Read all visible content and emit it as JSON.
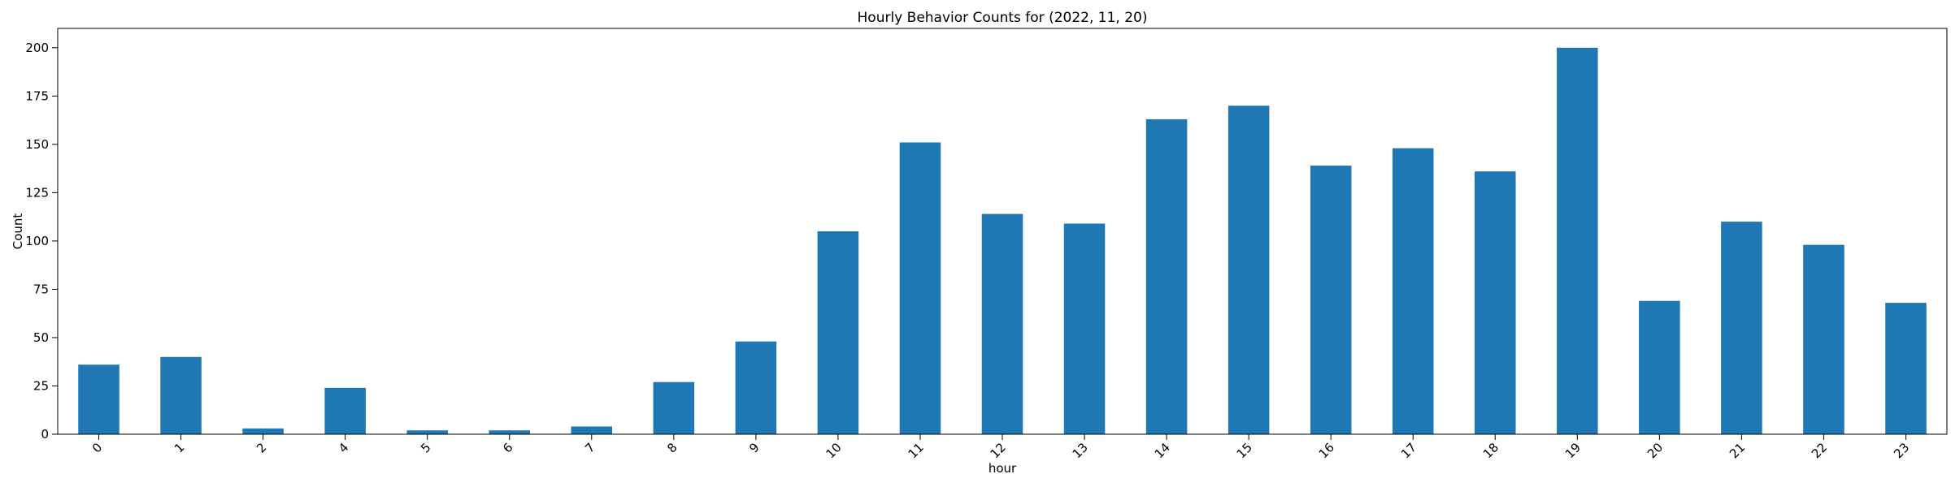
{
  "chart_data": {
    "type": "bar",
    "title": "Hourly Behavior Counts for (2022, 11, 20)",
    "xlabel": "hour",
    "ylabel": "Count",
    "categories": [
      "0",
      "1",
      "2",
      "4",
      "5",
      "6",
      "7",
      "8",
      "9",
      "10",
      "11",
      "12",
      "13",
      "14",
      "15",
      "16",
      "17",
      "18",
      "19",
      "20",
      "21",
      "22",
      "23"
    ],
    "values": [
      36,
      40,
      3,
      24,
      2,
      2,
      4,
      27,
      48,
      105,
      151,
      114,
      109,
      163,
      170,
      139,
      148,
      136,
      200,
      69,
      110,
      98,
      68
    ],
    "ylim": [
      0,
      210
    ],
    "yticks": [
      0,
      25,
      50,
      75,
      100,
      125,
      150,
      175,
      200
    ],
    "grid": false,
    "legend": "none",
    "bar_color": "#1f77b4",
    "xtick_rotation": 45
  }
}
